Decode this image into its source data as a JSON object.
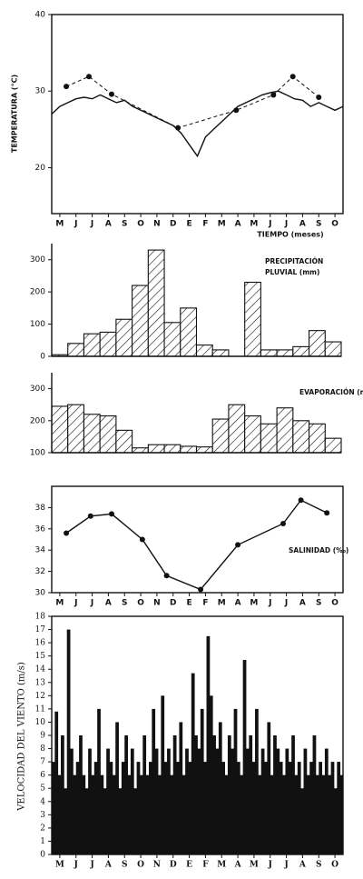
{
  "chart_data": [
    {
      "type": "line",
      "ylabel": "TEMPERATURA (°C)",
      "xlabel": "TIEMPO (meses)",
      "frame": true,
      "xlim": [
        0,
        18
      ],
      "ylim": [
        14,
        40
      ],
      "yticks": [
        20,
        30,
        40
      ],
      "xticks": [
        {
          "value": 0.5,
          "label": "M"
        },
        {
          "value": 1.5,
          "label": "J"
        },
        {
          "value": 2.5,
          "label": "J"
        },
        {
          "value": 3.5,
          "label": "A"
        },
        {
          "value": 4.5,
          "label": "S"
        },
        {
          "value": 5.5,
          "label": "O"
        },
        {
          "value": 6.5,
          "label": "N"
        },
        {
          "value": 7.5,
          "label": "D"
        },
        {
          "value": 8.5,
          "label": "E"
        },
        {
          "value": 9.5,
          "label": "F"
        },
        {
          "value": 10.5,
          "label": "M"
        },
        {
          "value": 11.5,
          "label": "A"
        },
        {
          "value": 12.5,
          "label": "M"
        },
        {
          "value": 13.5,
          "label": "J"
        },
        {
          "value": 14.5,
          "label": "J"
        },
        {
          "value": 15.5,
          "label": "A"
        },
        {
          "value": 16.5,
          "label": "S"
        },
        {
          "value": 17.5,
          "label": "O"
        }
      ],
      "x": [
        0,
        0.5,
        1,
        1.5,
        2,
        2.5,
        3,
        3.5,
        4,
        4.5,
        5,
        5.5,
        6,
        6.5,
        7,
        7.5,
        8,
        8.5,
        9,
        9.5,
        10,
        10.5,
        11,
        11.5,
        12,
        12.5,
        13,
        13.5,
        14,
        14.5,
        15,
        15.5,
        16,
        16.5,
        17,
        17.5,
        18
      ],
      "series": [
        {
          "color": "#111111",
          "values": [
            27,
            28,
            28.5,
            29,
            29.2,
            29,
            29.5,
            29,
            28.5,
            28.8,
            28,
            27.5,
            27,
            26.5,
            26,
            25.5,
            24.5,
            23,
            21.5,
            24,
            25,
            26,
            27,
            28,
            28.5,
            29,
            29.5,
            29.8,
            30,
            29.5,
            29,
            28.8,
            28,
            28.5,
            28,
            27.5,
            28
          ]
        },
        {
          "color": "#111111",
          "dashed": true,
          "markers": true,
          "x": [
            0.9,
            2.3,
            3.7,
            7.8,
            11.4,
            13.7,
            14.9,
            16.5
          ],
          "values": [
            30.6,
            31.9,
            29.6,
            25.2,
            27.5,
            29.5,
            31.9,
            29.2
          ]
        }
      ]
    },
    {
      "type": "bar",
      "annotation": [
        "PRECIPITACIÓN",
        "PLUVIAL (mm)"
      ],
      "frame": false,
      "hatch": true,
      "color": "#111111",
      "ylim": [
        0,
        350
      ],
      "yticks": [
        0,
        100,
        200,
        300
      ],
      "values": [
        5,
        40,
        70,
        75,
        115,
        220,
        330,
        105,
        150,
        35,
        20,
        null,
        230,
        20,
        20,
        30,
        80,
        45
      ]
    },
    {
      "type": "bar",
      "annotation": [
        "EVAPORACIÓN (mm)"
      ],
      "frame": false,
      "hatch": true,
      "color": "#111111",
      "ylim": [
        100,
        350
      ],
      "yticks": [
        100,
        200,
        300
      ],
      "values": [
        245,
        250,
        220,
        215,
        170,
        115,
        125,
        125,
        120,
        118,
        205,
        250,
        215,
        190,
        240,
        200,
        190,
        145
      ]
    },
    {
      "type": "line",
      "annotation": [
        "SALINIDAD (‰)"
      ],
      "frame": true,
      "xlim": [
        0,
        18
      ],
      "ylim": [
        30,
        40
      ],
      "yticks": [
        30,
        32,
        34,
        36,
        38
      ],
      "xticks": [
        {
          "value": 0.5,
          "label": "M"
        },
        {
          "value": 1.5,
          "label": "J"
        },
        {
          "value": 2.5,
          "label": "J"
        },
        {
          "value": 3.5,
          "label": "A"
        },
        {
          "value": 4.5,
          "label": "S"
        },
        {
          "value": 5.5,
          "label": "O"
        },
        {
          "value": 6.5,
          "label": "N"
        },
        {
          "value": 7.5,
          "label": "D"
        },
        {
          "value": 8.5,
          "label": "E"
        },
        {
          "value": 9.5,
          "label": "F"
        },
        {
          "value": 10.5,
          "label": "M"
        },
        {
          "value": 11.5,
          "label": "A"
        },
        {
          "value": 12.5,
          "label": "M"
        },
        {
          "value": 13.5,
          "label": "J"
        },
        {
          "value": 14.5,
          "label": "J"
        },
        {
          "value": 15.5,
          "label": "A"
        },
        {
          "value": 16.5,
          "label": "S"
        },
        {
          "value": 17.5,
          "label": "O"
        }
      ],
      "series": [
        {
          "color": "#111111",
          "markers": true,
          "x": [
            0.9,
            2.4,
            3.7,
            5.6,
            7.1,
            9.2,
            11.5,
            14.3,
            15.4,
            17.0
          ],
          "values": [
            35.6,
            37.2,
            37.4,
            35.0,
            31.6,
            30.3,
            34.5,
            36.5,
            38.7,
            37.5
          ]
        }
      ]
    },
    {
      "type": "bar",
      "ylabel": "VELOCIDAD DEL VIENTO (m/s)",
      "frame": true,
      "hatch": false,
      "color": "#111111",
      "xlim": [
        0,
        18
      ],
      "ylim": [
        0,
        18
      ],
      "yticks": [
        0,
        1,
        2,
        3,
        4,
        5,
        6,
        7,
        8,
        9,
        10,
        11,
        12,
        13,
        14,
        15,
        16,
        17,
        18
      ],
      "xticks": [
        {
          "value": 0.5,
          "label": "M"
        },
        {
          "value": 1.5,
          "label": "J"
        },
        {
          "value": 2.5,
          "label": "J"
        },
        {
          "value": 3.5,
          "label": "A"
        },
        {
          "value": 4.5,
          "label": "S"
        },
        {
          "value": 5.5,
          "label": "O"
        },
        {
          "value": 6.5,
          "label": "N"
        },
        {
          "value": 7.5,
          "label": "D"
        },
        {
          "value": 8.5,
          "label": "E"
        },
        {
          "value": 9.5,
          "label": "F"
        },
        {
          "value": 10.5,
          "label": "M"
        },
        {
          "value": 11.5,
          "label": "A"
        },
        {
          "value": 12.5,
          "label": "M"
        },
        {
          "value": 13.5,
          "label": "J"
        },
        {
          "value": 14.5,
          "label": "J"
        },
        {
          "value": 15.5,
          "label": "A"
        },
        {
          "value": 16.5,
          "label": "S"
        },
        {
          "value": 17.5,
          "label": "O"
        }
      ],
      "values": [
        7,
        10.8,
        6,
        9,
        5,
        17,
        8,
        6,
        7,
        9,
        6,
        5,
        8,
        6,
        7,
        11,
        6,
        5,
        8,
        7,
        6,
        10,
        5,
        7,
        9,
        6,
        8,
        5,
        7,
        6,
        9,
        6,
        7,
        11,
        8,
        6,
        12,
        7,
        8,
        6,
        9,
        7,
        10,
        6,
        8,
        7,
        13.7,
        9,
        8,
        11,
        7,
        16.5,
        12,
        9,
        8,
        10,
        7,
        6,
        9,
        8,
        11,
        7,
        6,
        14.7,
        8,
        9,
        7,
        11,
        6,
        8,
        7,
        10,
        6,
        9,
        8,
        7,
        6,
        8,
        7,
        9,
        6,
        7,
        5,
        8,
        6,
        7,
        9,
        6,
        7,
        6,
        8,
        6,
        7,
        5,
        7,
        6
      ]
    }
  ]
}
